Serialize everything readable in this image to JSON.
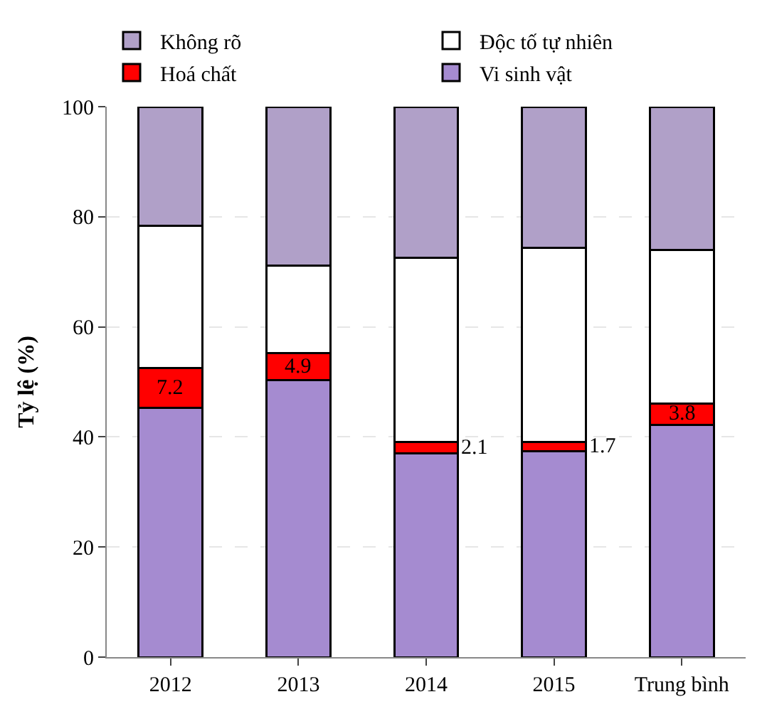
{
  "chart_data": {
    "type": "bar",
    "stacked": true,
    "ylabel": "Tỷ lệ (%)",
    "categories": [
      "2012",
      "2013",
      "2014",
      "2015",
      "Trung bình"
    ],
    "series": [
      {
        "name": "Vi sinh vật",
        "color": "#a58bd0",
        "values": [
          45.3,
          50.3,
          37.0,
          37.4,
          42.2
        ]
      },
      {
        "name": "Hoá chất",
        "color": "#ff0000",
        "values": [
          7.2,
          4.9,
          2.1,
          1.7,
          3.8
        ],
        "value_labels": [
          "7.2",
          "4.9",
          "2.1",
          "1.7",
          "3.8"
        ]
      },
      {
        "name": "Độc tố tự nhiên",
        "color": "#ffffff",
        "values": [
          25.9,
          15.9,
          33.5,
          35.2,
          28.0
        ]
      },
      {
        "name": "Không rõ",
        "color": "#b0a0c8",
        "values": [
          21.6,
          28.9,
          27.4,
          25.7,
          26.0
        ]
      }
    ],
    "ylim": [
      0,
      100
    ],
    "yticks": [
      0,
      20,
      40,
      60,
      80,
      100
    ],
    "grid": "y",
    "legend": "top"
  }
}
